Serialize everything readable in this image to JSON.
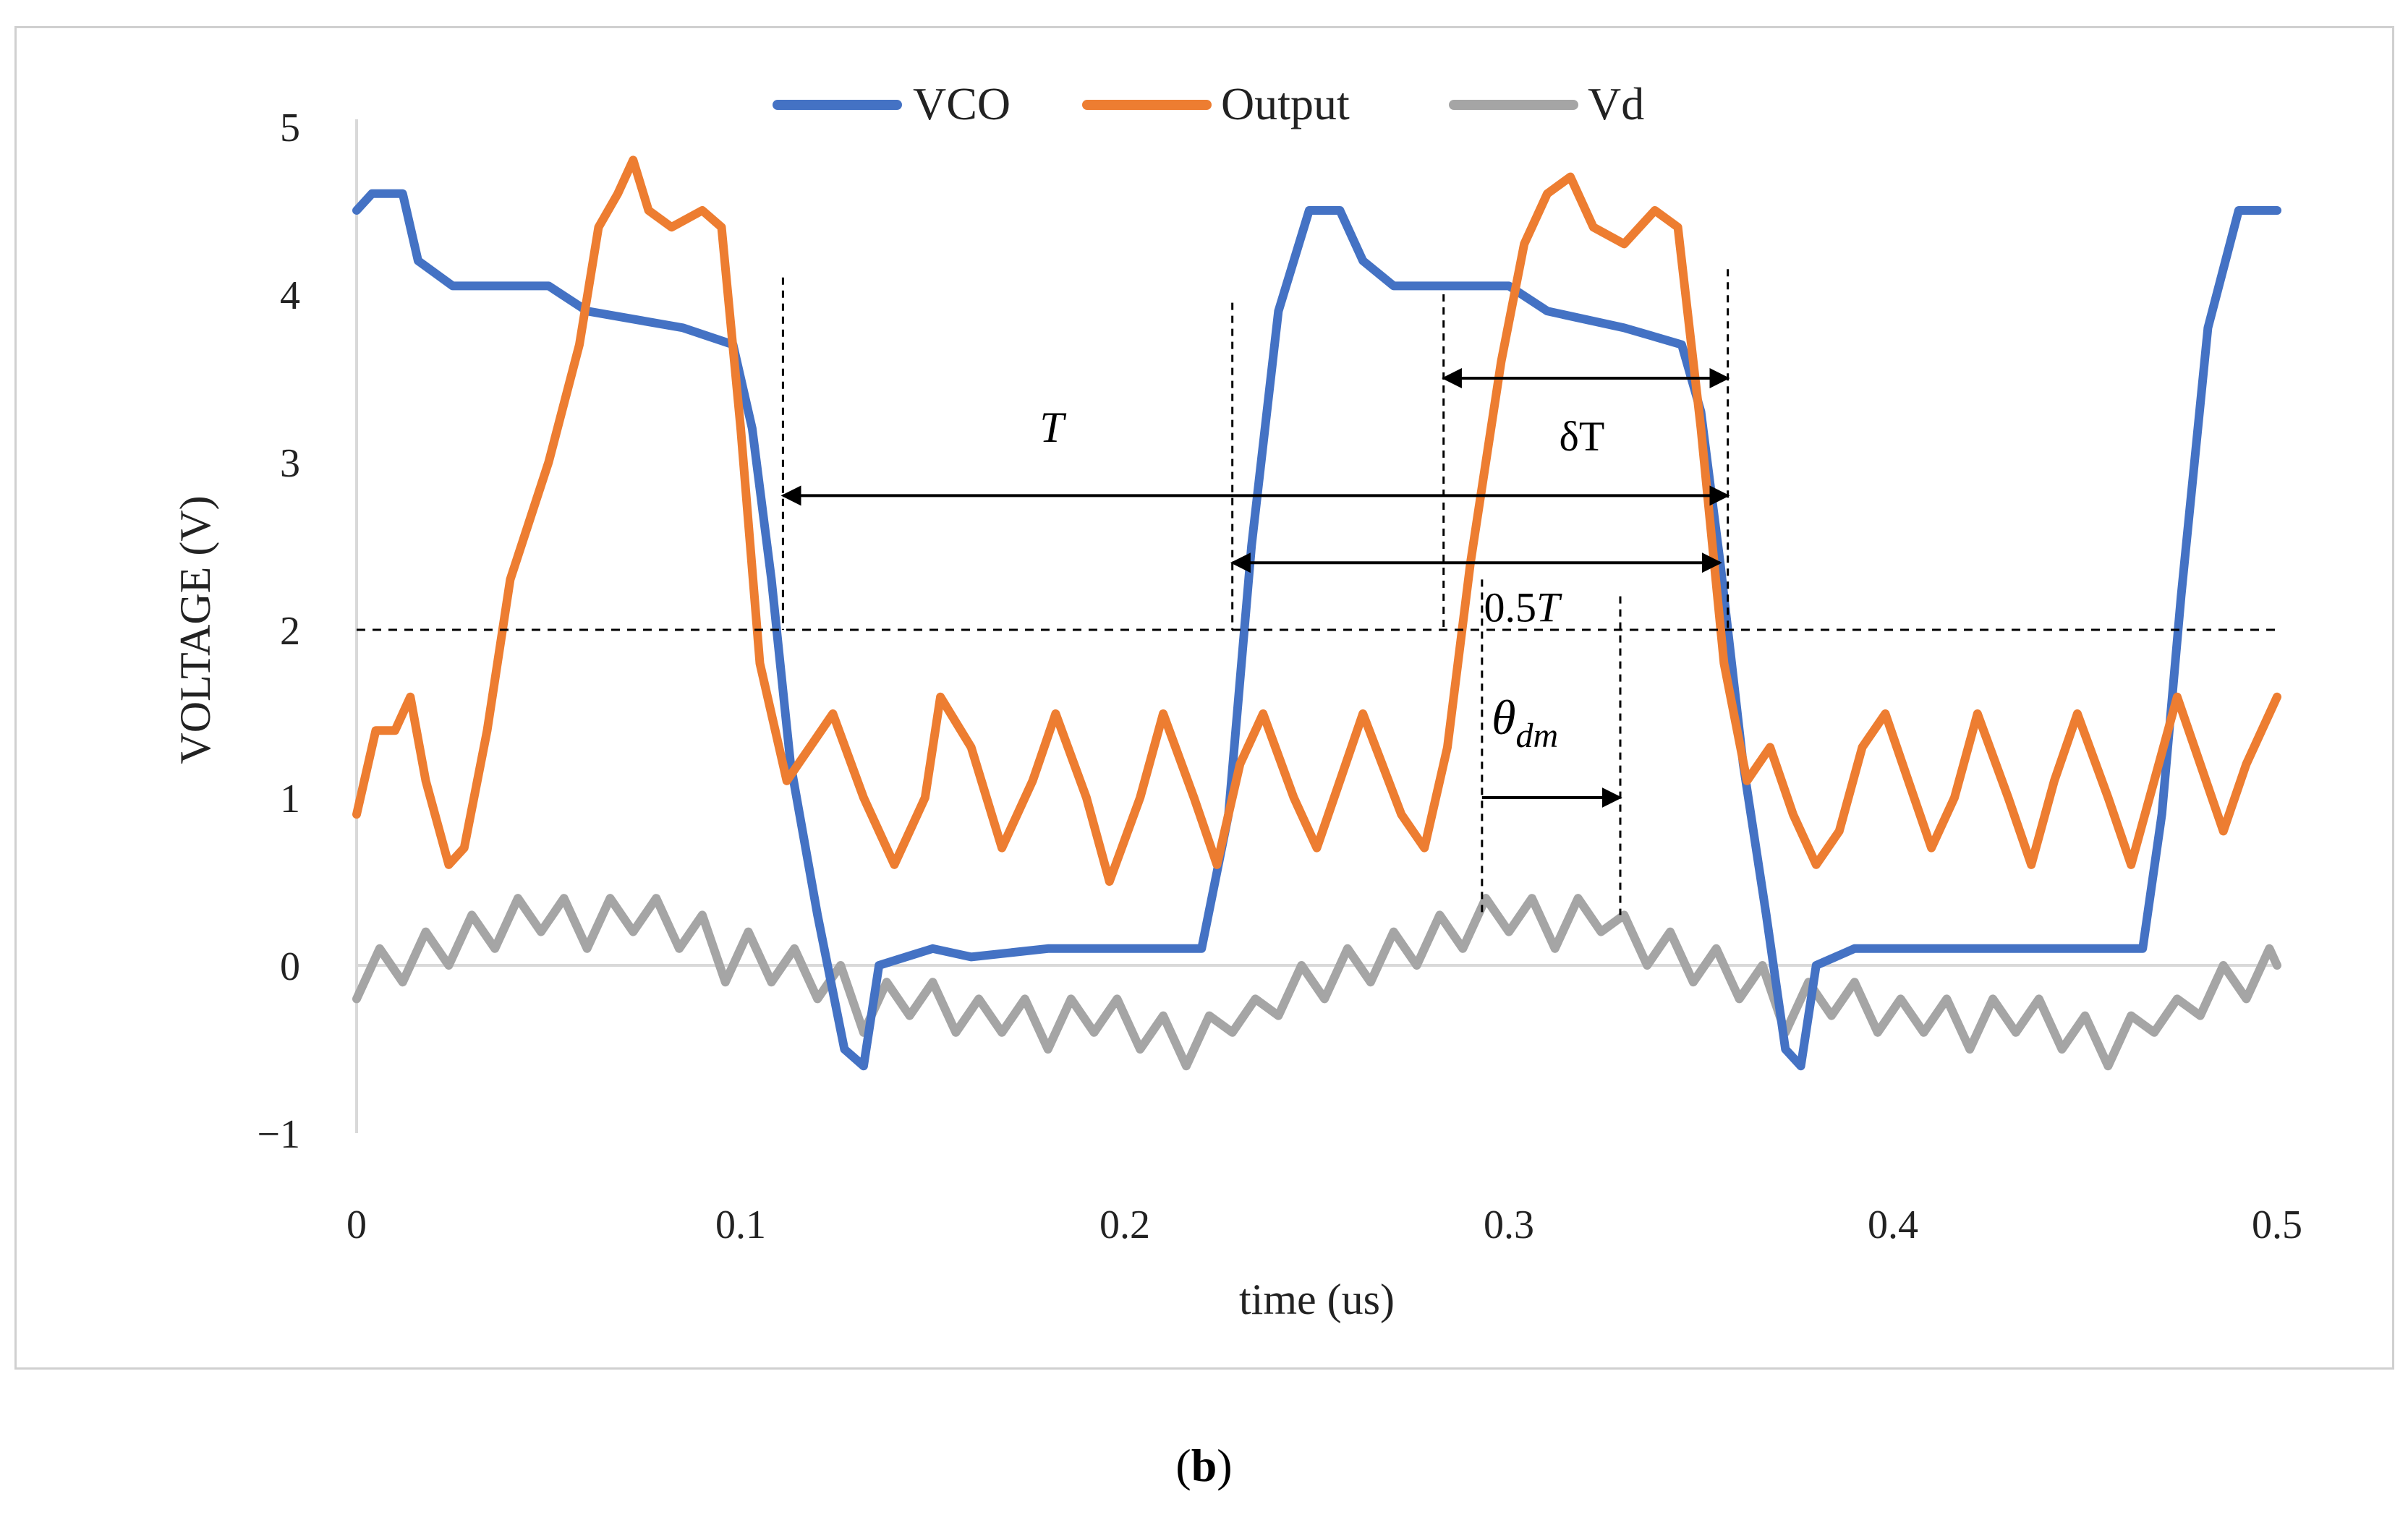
{
  "chart_data": {
    "type": "line",
    "xlabel": "time (us)",
    "ylabel": "VOLTAGE (V)",
    "xlim": [
      0,
      0.5
    ],
    "ylim": [
      -1,
      5
    ],
    "x_ticks": [
      "0",
      "0.1",
      "0.2",
      "0.3",
      "0.4",
      "0.5"
    ],
    "y_ticks": [
      "5",
      "4",
      "3",
      "2",
      "1",
      "0",
      "−1"
    ],
    "x_tick_values": [
      0,
      0.1,
      0.2,
      0.3,
      0.4,
      0.5
    ],
    "y_tick_values": [
      5,
      4,
      3,
      2,
      1,
      0,
      -1
    ],
    "grid": false,
    "legend_position": "top-center",
    "reference_line": {
      "y": 2,
      "style": "dashed"
    },
    "series": [
      {
        "name": "VCO",
        "color": "#4472C4",
        "points": [
          [
            0,
            4.5
          ],
          [
            0.004,
            4.6
          ],
          [
            0.012,
            4.6
          ],
          [
            0.016,
            4.2
          ],
          [
            0.025,
            4.05
          ],
          [
            0.05,
            4.05
          ],
          [
            0.06,
            3.9
          ],
          [
            0.085,
            3.8
          ],
          [
            0.098,
            3.7
          ],
          [
            0.103,
            3.2
          ],
          [
            0.108,
            2.3
          ],
          [
            0.113,
            1.2
          ],
          [
            0.12,
            0.3
          ],
          [
            0.127,
            -0.5
          ],
          [
            0.132,
            -0.6
          ],
          [
            0.136,
            0.0
          ],
          [
            0.15,
            0.1
          ],
          [
            0.16,
            0.05
          ],
          [
            0.18,
            0.1
          ],
          [
            0.22,
            0.1
          ],
          [
            0.227,
            0.9
          ],
          [
            0.233,
            2.5
          ],
          [
            0.24,
            3.9
          ],
          [
            0.248,
            4.5
          ],
          [
            0.256,
            4.5
          ],
          [
            0.262,
            4.2
          ],
          [
            0.27,
            4.05
          ],
          [
            0.3,
            4.05
          ],
          [
            0.31,
            3.9
          ],
          [
            0.33,
            3.8
          ],
          [
            0.345,
            3.7
          ],
          [
            0.35,
            3.3
          ],
          [
            0.355,
            2.4
          ],
          [
            0.361,
            1.2
          ],
          [
            0.367,
            0.3
          ],
          [
            0.372,
            -0.5
          ],
          [
            0.376,
            -0.6
          ],
          [
            0.38,
            0.0
          ],
          [
            0.39,
            0.1
          ],
          [
            0.465,
            0.1
          ],
          [
            0.47,
            0.9
          ],
          [
            0.475,
            2.2
          ],
          [
            0.482,
            3.8
          ],
          [
            0.49,
            4.5
          ],
          [
            0.5,
            4.5
          ]
        ]
      },
      {
        "name": "Output",
        "color": "#ED7D31",
        "points": [
          [
            0,
            0.9
          ],
          [
            0.005,
            1.4
          ],
          [
            0.01,
            1.4
          ],
          [
            0.014,
            1.6
          ],
          [
            0.018,
            1.1
          ],
          [
            0.024,
            0.6
          ],
          [
            0.028,
            0.7
          ],
          [
            0.034,
            1.4
          ],
          [
            0.04,
            2.3
          ],
          [
            0.05,
            3.0
          ],
          [
            0.058,
            3.7
          ],
          [
            0.063,
            4.4
          ],
          [
            0.068,
            4.6
          ],
          [
            0.072,
            4.8
          ],
          [
            0.076,
            4.5
          ],
          [
            0.082,
            4.4
          ],
          [
            0.09,
            4.5
          ],
          [
            0.095,
            4.4
          ],
          [
            0.1,
            3.2
          ],
          [
            0.105,
            1.8
          ],
          [
            0.112,
            1.1
          ],
          [
            0.118,
            1.3
          ],
          [
            0.124,
            1.5
          ],
          [
            0.132,
            1.0
          ],
          [
            0.14,
            0.6
          ],
          [
            0.148,
            1.0
          ],
          [
            0.152,
            1.6
          ],
          [
            0.16,
            1.3
          ],
          [
            0.168,
            0.7
          ],
          [
            0.176,
            1.1
          ],
          [
            0.182,
            1.5
          ],
          [
            0.19,
            1.0
          ],
          [
            0.196,
            0.5
          ],
          [
            0.204,
            1.0
          ],
          [
            0.21,
            1.5
          ],
          [
            0.218,
            1.0
          ],
          [
            0.224,
            0.6
          ],
          [
            0.23,
            1.2
          ],
          [
            0.236,
            1.5
          ],
          [
            0.244,
            1.0
          ],
          [
            0.25,
            0.7
          ],
          [
            0.256,
            1.1
          ],
          [
            0.262,
            1.5
          ],
          [
            0.272,
            0.9
          ],
          [
            0.278,
            0.7
          ],
          [
            0.284,
            1.3
          ],
          [
            0.29,
            2.4
          ],
          [
            0.298,
            3.6
          ],
          [
            0.304,
            4.3
          ],
          [
            0.31,
            4.6
          ],
          [
            0.316,
            4.7
          ],
          [
            0.322,
            4.4
          ],
          [
            0.33,
            4.3
          ],
          [
            0.338,
            4.5
          ],
          [
            0.344,
            4.4
          ],
          [
            0.35,
            3.2
          ],
          [
            0.356,
            1.8
          ],
          [
            0.362,
            1.1
          ],
          [
            0.368,
            1.3
          ],
          [
            0.374,
            0.9
          ],
          [
            0.38,
            0.6
          ],
          [
            0.386,
            0.8
          ],
          [
            0.392,
            1.3
          ],
          [
            0.398,
            1.5
          ],
          [
            0.404,
            1.1
          ],
          [
            0.41,
            0.7
          ],
          [
            0.416,
            1.0
          ],
          [
            0.422,
            1.5
          ],
          [
            0.43,
            1.0
          ],
          [
            0.436,
            0.6
          ],
          [
            0.442,
            1.1
          ],
          [
            0.448,
            1.5
          ],
          [
            0.456,
            1.0
          ],
          [
            0.462,
            0.6
          ],
          [
            0.468,
            1.1
          ],
          [
            0.474,
            1.6
          ],
          [
            0.48,
            1.2
          ],
          [
            0.486,
            0.8
          ],
          [
            0.492,
            1.2
          ],
          [
            0.5,
            1.6
          ]
        ]
      },
      {
        "name": "Vd",
        "color": "#A5A5A5",
        "points": [
          [
            0,
            -0.2
          ],
          [
            0.006,
            0.1
          ],
          [
            0.012,
            -0.1
          ],
          [
            0.018,
            0.2
          ],
          [
            0.024,
            0.0
          ],
          [
            0.03,
            0.3
          ],
          [
            0.036,
            0.1
          ],
          [
            0.042,
            0.4
          ],
          [
            0.048,
            0.2
          ],
          [
            0.054,
            0.4
          ],
          [
            0.06,
            0.1
          ],
          [
            0.066,
            0.4
          ],
          [
            0.072,
            0.2
          ],
          [
            0.078,
            0.4
          ],
          [
            0.084,
            0.1
          ],
          [
            0.09,
            0.3
          ],
          [
            0.096,
            -0.1
          ],
          [
            0.102,
            0.2
          ],
          [
            0.108,
            -0.1
          ],
          [
            0.114,
            0.1
          ],
          [
            0.12,
            -0.2
          ],
          [
            0.126,
            0.0
          ],
          [
            0.132,
            -0.4
          ],
          [
            0.138,
            -0.1
          ],
          [
            0.144,
            -0.3
          ],
          [
            0.15,
            -0.1
          ],
          [
            0.156,
            -0.4
          ],
          [
            0.162,
            -0.2
          ],
          [
            0.168,
            -0.4
          ],
          [
            0.174,
            -0.2
          ],
          [
            0.18,
            -0.5
          ],
          [
            0.186,
            -0.2
          ],
          [
            0.192,
            -0.4
          ],
          [
            0.198,
            -0.2
          ],
          [
            0.204,
            -0.5
          ],
          [
            0.21,
            -0.3
          ],
          [
            0.216,
            -0.6
          ],
          [
            0.222,
            -0.3
          ],
          [
            0.228,
            -0.4
          ],
          [
            0.234,
            -0.2
          ],
          [
            0.24,
            -0.3
          ],
          [
            0.246,
            0.0
          ],
          [
            0.252,
            -0.2
          ],
          [
            0.258,
            0.1
          ],
          [
            0.264,
            -0.1
          ],
          [
            0.27,
            0.2
          ],
          [
            0.276,
            0.0
          ],
          [
            0.282,
            0.3
          ],
          [
            0.288,
            0.1
          ],
          [
            0.294,
            0.4
          ],
          [
            0.3,
            0.2
          ],
          [
            0.306,
            0.4
          ],
          [
            0.312,
            0.1
          ],
          [
            0.318,
            0.4
          ],
          [
            0.324,
            0.2
          ],
          [
            0.33,
            0.3
          ],
          [
            0.336,
            0.0
          ],
          [
            0.342,
            0.2
          ],
          [
            0.348,
            -0.1
          ],
          [
            0.354,
            0.1
          ],
          [
            0.36,
            -0.2
          ],
          [
            0.366,
            0.0
          ],
          [
            0.372,
            -0.4
          ],
          [
            0.378,
            -0.1
          ],
          [
            0.384,
            -0.3
          ],
          [
            0.39,
            -0.1
          ],
          [
            0.396,
            -0.4
          ],
          [
            0.402,
            -0.2
          ],
          [
            0.408,
            -0.4
          ],
          [
            0.414,
            -0.2
          ],
          [
            0.42,
            -0.5
          ],
          [
            0.426,
            -0.2
          ],
          [
            0.432,
            -0.4
          ],
          [
            0.438,
            -0.2
          ],
          [
            0.444,
            -0.5
          ],
          [
            0.45,
            -0.3
          ],
          [
            0.456,
            -0.6
          ],
          [
            0.462,
            -0.3
          ],
          [
            0.468,
            -0.4
          ],
          [
            0.474,
            -0.2
          ],
          [
            0.48,
            -0.3
          ],
          [
            0.486,
            0.0
          ],
          [
            0.492,
            -0.2
          ],
          [
            0.498,
            0.1
          ],
          [
            0.5,
            0.0
          ]
        ]
      }
    ],
    "annotations": [
      {
        "label": "T",
        "italic": true,
        "x_from": 0.111,
        "x_to": 0.357,
        "y": 2.8,
        "arrows": "both"
      },
      {
        "label": "0.5T",
        "x_from": 0.228,
        "x_to": 0.355,
        "y": 2.4,
        "arrows": "both"
      },
      {
        "label": "δT",
        "x_from": 0.283,
        "x_to": 0.357,
        "y": 3.5,
        "arrows": "both"
      },
      {
        "label": "θ_dm",
        "x_from": 0.293,
        "x_to": 0.329,
        "y": 1.0,
        "arrows": "end"
      }
    ],
    "vertical_markers": [
      {
        "x": 0.111,
        "y_from": 2.0,
        "y_to": 4.1
      },
      {
        "x": 0.228,
        "y_from": 2.0,
        "y_to": 3.95
      },
      {
        "x": 0.283,
        "y_from": 2.0,
        "y_to": 4.0
      },
      {
        "x": 0.357,
        "y_from": 2.0,
        "y_to": 4.15
      },
      {
        "x": 0.293,
        "y_from": 0.3,
        "y_to": 2.3
      },
      {
        "x": 0.329,
        "y_from": 0.3,
        "y_to": 2.2
      }
    ]
  },
  "labels": {
    "T": "T",
    "half_T_prefix": "0.5",
    "half_T_var": "T",
    "delta_T": "δT",
    "theta_base": "θ",
    "theta_sub": "dm"
  },
  "panel_label": {
    "open": "(",
    "letter": "b",
    "close": ")"
  }
}
